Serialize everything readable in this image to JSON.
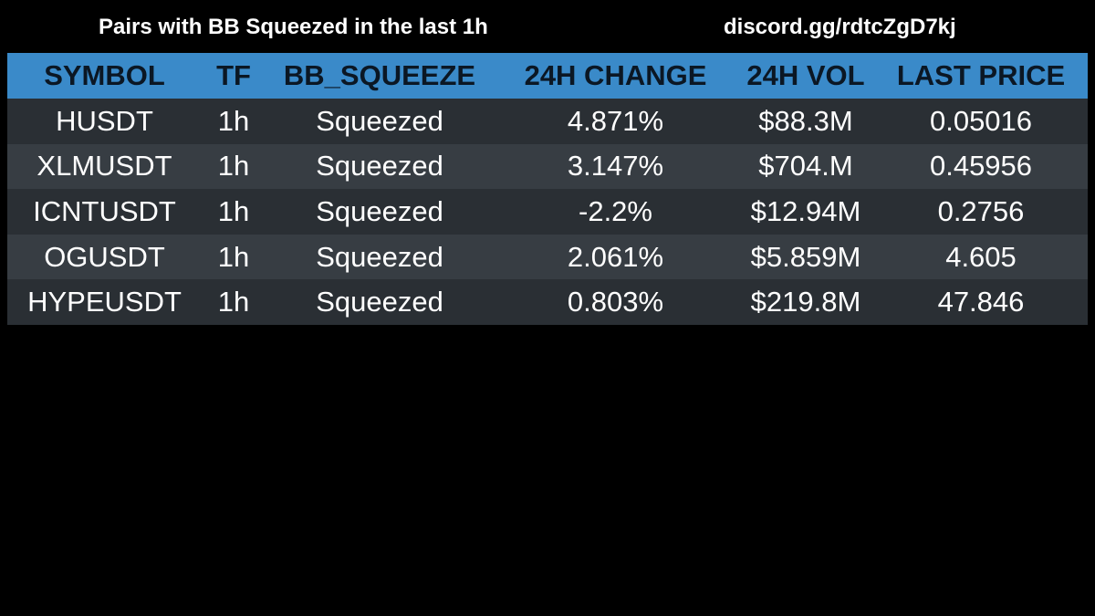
{
  "header": {
    "title": "Pairs with BB Squeezed in the last 1h",
    "link": "discord.gg/rdtcZgD7kj"
  },
  "table": {
    "columns": [
      "SYMBOL",
      "TF",
      "BB_SQUEEZE",
      "24H CHANGE",
      "24H VOL",
      "LAST PRICE"
    ],
    "rows": [
      [
        "HUSDT",
        "1h",
        "Squeezed",
        "4.871%",
        "$88.3M",
        "0.05016"
      ],
      [
        "XLMUSDT",
        "1h",
        "Squeezed",
        "3.147%",
        "$704.M",
        "0.45956"
      ],
      [
        "ICNTUSDT",
        "1h",
        "Squeezed",
        "-2.2%",
        "$12.94M",
        "0.2756"
      ],
      [
        "OGUSDT",
        "1h",
        "Squeezed",
        "2.061%",
        "$5.859M",
        "4.605"
      ],
      [
        "HYPEUSDT",
        "1h",
        "Squeezed",
        "0.803%",
        "$219.8M",
        "47.846"
      ]
    ]
  },
  "colors": {
    "background": "#000000",
    "header_row": "#3a8ac9",
    "header_text": "#0b1724",
    "row_dark": "#2a2f34",
    "row_light": "#373d43",
    "cell_text": "#ffffff"
  }
}
